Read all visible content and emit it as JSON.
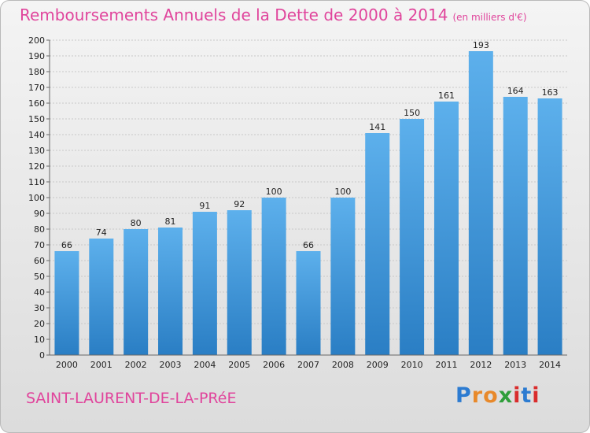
{
  "title": "Remboursements Annuels de la Dette de 2000 à 2014",
  "subtitle": "(en milliers d'€)",
  "commune": "SAINT-LAURENT-DE-LA-PRéE",
  "logo": {
    "letters": [
      "P",
      "r",
      "o",
      "x",
      "i",
      "t",
      "i"
    ],
    "colors": [
      "#2c7bd1",
      "#e8892a",
      "#e8892a",
      "#2e9e3a",
      "#d92c2c",
      "#2c7bd1",
      "#d92c2c"
    ]
  },
  "colors": {
    "bar": "#4aa0e0",
    "bar_dark": "#2a7ec4",
    "title": "#e0459c"
  },
  "chart_data": {
    "type": "bar",
    "title": "Remboursements Annuels de la Dette de 2000 à 2014",
    "subtitle": "(en milliers d'€)",
    "categories": [
      "2000",
      "2001",
      "2002",
      "2003",
      "2004",
      "2005",
      "2006",
      "2007",
      "2008",
      "2009",
      "2010",
      "2011",
      "2012",
      "2013",
      "2014"
    ],
    "values": [
      66,
      74,
      80,
      81,
      91,
      92,
      100,
      66,
      100,
      141,
      150,
      161,
      193,
      164,
      163
    ],
    "ylim": [
      0,
      200
    ],
    "ytick_step": 10,
    "grid": true
  }
}
